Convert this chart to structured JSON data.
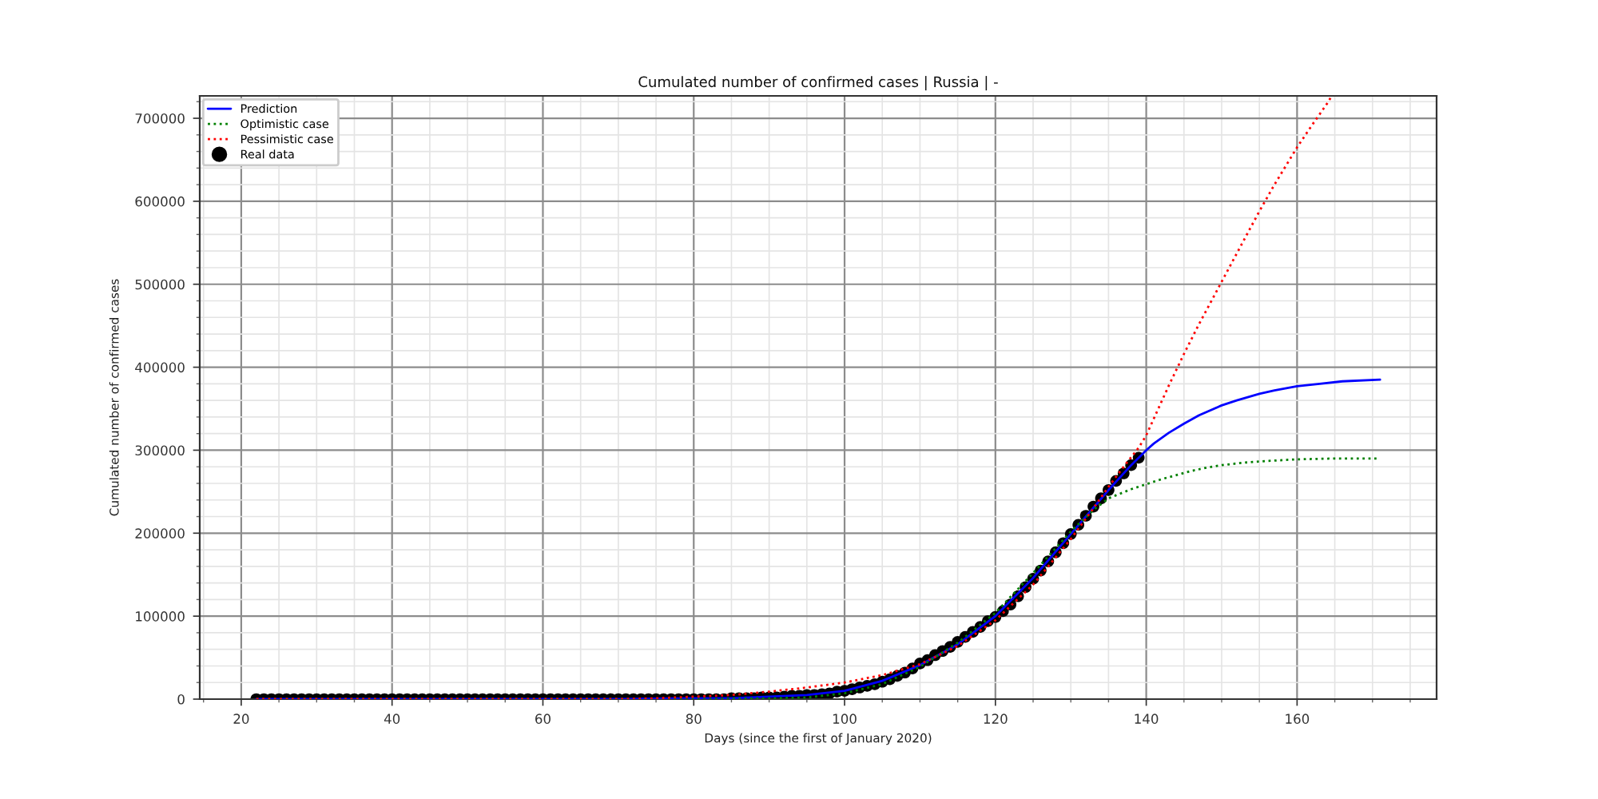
{
  "chart_data": {
    "type": "line",
    "title": "Cumulated number of confirmed cases | Russia | -",
    "xlabel": "Days (since the first of January 2020)",
    "ylabel": "Cumulated number of confirmed cases",
    "xlim": [
      14.5,
      178.5
    ],
    "ylim": [
      0,
      727000
    ],
    "xticks": [
      {
        "value": 15,
        "label": null
      },
      20,
      {
        "value": 25,
        "label": null
      },
      {
        "value": 30,
        "label": null
      },
      {
        "value": 35,
        "label": null
      },
      40,
      {
        "value": 45,
        "label": null
      },
      {
        "value": 50,
        "label": null
      },
      {
        "value": 55,
        "label": null
      },
      60,
      {
        "value": 65,
        "label": null
      },
      {
        "value": 70,
        "label": null
      },
      {
        "value": 75,
        "label": null
      },
      80,
      {
        "value": 85,
        "label": null
      },
      {
        "value": 90,
        "label": null
      },
      {
        "value": 95,
        "label": null
      },
      100,
      {
        "value": 105,
        "label": null
      },
      {
        "value": 110,
        "label": null
      },
      {
        "value": 115,
        "label": null
      },
      120,
      {
        "value": 125,
        "label": null
      },
      {
        "value": 130,
        "label": null
      },
      {
        "value": 135,
        "label": null
      },
      140,
      {
        "value": 145,
        "label": null
      },
      {
        "value": 150,
        "label": null
      },
      {
        "value": 155,
        "label": null
      },
      160,
      {
        "value": 165,
        "label": null
      },
      {
        "value": 170,
        "label": null
      },
      {
        "value": 175,
        "label": null
      }
    ],
    "yticks": [
      0,
      {
        "value": 20000,
        "label": null
      },
      {
        "value": 40000,
        "label": null
      },
      {
        "value": 60000,
        "label": null
      },
      {
        "value": 80000,
        "label": null
      },
      100000,
      {
        "value": 120000,
        "label": null
      },
      {
        "value": 140000,
        "label": null
      },
      {
        "value": 160000,
        "label": null
      },
      {
        "value": 180000,
        "label": null
      },
      200000,
      {
        "value": 220000,
        "label": null
      },
      {
        "value": 240000,
        "label": null
      },
      {
        "value": 260000,
        "label": null
      },
      {
        "value": 280000,
        "label": null
      },
      300000,
      {
        "value": 320000,
        "label": null
      },
      {
        "value": 340000,
        "label": null
      },
      {
        "value": 360000,
        "label": null
      },
      {
        "value": 380000,
        "label": null
      },
      400000,
      {
        "value": 420000,
        "label": null
      },
      {
        "value": 440000,
        "label": null
      },
      {
        "value": 460000,
        "label": null
      },
      {
        "value": 480000,
        "label": null
      },
      500000,
      {
        "value": 520000,
        "label": null
      },
      {
        "value": 540000,
        "label": null
      },
      {
        "value": 560000,
        "label": null
      },
      {
        "value": 580000,
        "label": null
      },
      600000,
      {
        "value": 620000,
        "label": null
      },
      {
        "value": 640000,
        "label": null
      },
      {
        "value": 660000,
        "label": null
      },
      {
        "value": 680000,
        "label": null
      },
      700000,
      {
        "value": 720000,
        "label": null
      }
    ],
    "grid": true,
    "legend": "top left",
    "series": [
      {
        "name": "Prediction",
        "color": "#0000ff",
        "line_style": "solid",
        "marker": "none",
        "x": [
          22,
          40,
          60,
          70,
          80,
          85,
          90,
          95,
          100,
          105,
          110,
          115,
          120,
          125,
          130,
          135,
          138,
          140,
          141,
          143,
          145,
          147,
          150,
          152,
          155,
          157,
          160,
          163,
          166,
          171
        ],
        "values": [
          0,
          0,
          0,
          0,
          1000,
          1000,
          3000,
          5000,
          10000,
          22000,
          41000,
          66000,
          100000,
          146000,
          199000,
          252000,
          282000,
          300000,
          308000,
          321000,
          332000,
          342000,
          354000,
          360000,
          368000,
          372000,
          377000,
          380000,
          383000,
          385000
        ]
      },
      {
        "name": "Optimistic case",
        "color": "#008000",
        "line_style": "dotted",
        "marker": "none",
        "x": [
          22,
          60,
          80,
          90,
          95,
          100,
          105,
          110,
          115,
          120,
          125,
          130,
          133,
          135,
          138,
          140,
          142,
          144,
          146,
          148,
          150,
          153,
          156,
          160,
          165,
          171
        ],
        "values": [
          0,
          0,
          0,
          1000,
          2000,
          7000,
          18000,
          39000,
          68000,
          104000,
          152000,
          202000,
          228000,
          242000,
          253000,
          259000,
          265000,
          270000,
          275000,
          279000,
          282000,
          285000,
          287000,
          289000,
          290000,
          290000
        ]
      },
      {
        "name": "Pessimistic case",
        "color": "#ff0000",
        "line_style": "dotted",
        "marker": "none",
        "x": [
          22,
          60,
          70,
          75,
          80,
          85,
          90,
          95,
          100,
          105,
          110,
          115,
          120,
          125,
          130,
          133,
          135,
          137,
          139,
          140,
          141,
          143,
          145,
          147,
          150,
          152,
          155,
          157,
          160,
          162,
          164,
          164.6
        ],
        "values": [
          0,
          0,
          0,
          1000,
          3000,
          5000,
          9000,
          14000,
          20000,
          29000,
          42000,
          64000,
          95000,
          138000,
          193000,
          230000,
          256000,
          280000,
          303000,
          318000,
          338000,
          378000,
          416000,
          452000,
          503000,
          537000,
          588000,
          620000,
          665000,
          692000,
          718000,
          727000
        ]
      },
      {
        "name": "Real data",
        "type": "scatter",
        "color": "#000000",
        "marker": "circle",
        "x": [
          22,
          23,
          24,
          25,
          26,
          27,
          28,
          29,
          30,
          31,
          32,
          33,
          34,
          35,
          36,
          37,
          38,
          39,
          40,
          41,
          42,
          43,
          44,
          45,
          46,
          47,
          48,
          49,
          50,
          51,
          52,
          53,
          54,
          55,
          56,
          57,
          58,
          59,
          60,
          61,
          62,
          63,
          64,
          65,
          66,
          67,
          68,
          69,
          70,
          71,
          72,
          73,
          74,
          75,
          76,
          77,
          78,
          79,
          80,
          81,
          82,
          83,
          84,
          85,
          86,
          87,
          88,
          89,
          90,
          91,
          92,
          93,
          94,
          95,
          96,
          97,
          98,
          99,
          100,
          101,
          102,
          103,
          104,
          105,
          106,
          107,
          108,
          109,
          110,
          111,
          112,
          113,
          114,
          115,
          116,
          117,
          118,
          119,
          120,
          121,
          122,
          123,
          124,
          125,
          126,
          127,
          128,
          129,
          130,
          131,
          132,
          133,
          134,
          135,
          136,
          137,
          138,
          139
        ],
        "values": [
          0,
          0,
          0,
          0,
          0,
          0,
          0,
          0,
          0,
          0,
          0,
          0,
          0,
          0,
          0,
          0,
          0,
          0,
          0,
          0,
          0,
          0,
          0,
          0,
          0,
          0,
          0,
          0,
          0,
          0,
          0,
          0,
          0,
          0,
          0,
          0,
          0,
          0,
          0,
          0,
          0,
          0,
          0,
          0,
          0,
          0,
          0,
          0,
          0,
          0,
          0,
          0,
          0,
          0,
          0,
          0,
          0,
          0,
          0,
          0,
          0,
          0,
          0,
          1000,
          1000,
          1000,
          1000,
          2000,
          2000,
          2000,
          3000,
          4000,
          4000,
          5000,
          5000,
          6000,
          7000,
          9000,
          10000,
          12000,
          14000,
          16000,
          18000,
          21000,
          24000,
          28000,
          32000,
          37000,
          43000,
          47000,
          53000,
          58000,
          63000,
          69000,
          75000,
          81000,
          87000,
          94000,
          99000,
          106000,
          114000,
          124000,
          135000,
          145000,
          155000,
          166000,
          177000,
          188000,
          199000,
          210000,
          221000,
          232000,
          242000,
          252000,
          263000,
          272000,
          282000,
          291000
        ]
      }
    ]
  }
}
